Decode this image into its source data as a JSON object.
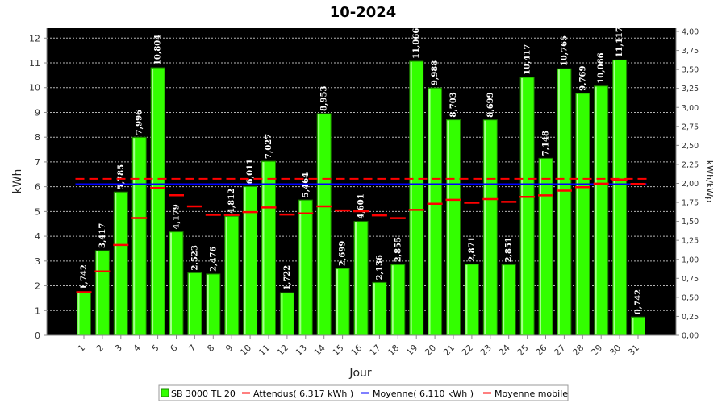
{
  "chart_data": {
    "type": "bar",
    "title": "10-2024",
    "xlabel": "Jour",
    "ylabel": "kWh",
    "y2label": "kWh/kWp",
    "ylim": [
      0,
      12.4
    ],
    "y2lim": [
      0,
      4.0
    ],
    "yticks": [
      "0",
      "1",
      "2",
      "3",
      "4",
      "5",
      "6",
      "7",
      "8",
      "9",
      "10",
      "11",
      "12"
    ],
    "y2ticks": [
      "0,00",
      "0,25",
      "0,50",
      "0,75",
      "1,00",
      "1,25",
      "1,50",
      "1,75",
      "2,00",
      "2,25",
      "2,50",
      "2,75",
      "3,00",
      "3,25",
      "3,50",
      "3,75",
      "4,00"
    ],
    "categories": [
      "1",
      "2",
      "3",
      "4",
      "5",
      "6",
      "7",
      "8",
      "9",
      "10",
      "11",
      "12",
      "13",
      "14",
      "15",
      "16",
      "17",
      "18",
      "19",
      "20",
      "21",
      "22",
      "23",
      "24",
      "25",
      "26",
      "27",
      "28",
      "29",
      "30",
      "31"
    ],
    "series": [
      {
        "name": "SB 3000 TL 20",
        "color": "#33ff00",
        "values": [
          1.742,
          3.417,
          5.785,
          7.996,
          10.804,
          4.179,
          2.523,
          2.476,
          4.812,
          6.011,
          7.027,
          1.722,
          5.464,
          8.953,
          2.699,
          4.601,
          2.136,
          2.855,
          11.066,
          9.988,
          8.703,
          2.871,
          8.699,
          2.851,
          10.417,
          7.148,
          10.765,
          9.769,
          10.066,
          11.117,
          0.742
        ],
        "labels": [
          "1,742",
          "3,417",
          "5,785",
          "7,996",
          "10,804",
          "4,179",
          "2,523",
          "2,476",
          "4,812",
          "6,011",
          "7,027",
          "1,722",
          "5,464",
          "8,953",
          "2,699",
          "4,601",
          "2,136",
          "2,855",
          "11,066",
          "9,988",
          "8,703",
          "2,871",
          "8,699",
          "2,851",
          "10,417",
          "7,148",
          "10,765",
          "9,769",
          "10,066",
          "11,117",
          "0,742"
        ]
      },
      {
        "name": "Attendus( 6,317 kWh )",
        "color": "#ff0000",
        "value": 6.317
      },
      {
        "name": "Moyenne( 6,110 kWh )",
        "color": "#0000ff",
        "value": 6.11
      },
      {
        "name": "Moyenne mobile",
        "color": "#ff0000",
        "values": [
          1.742,
          2.58,
          3.648,
          4.735,
          5.949,
          5.654,
          5.207,
          4.866,
          4.86,
          4.975,
          5.162,
          4.876,
          4.921,
          5.209,
          5.041,
          5.013,
          4.844,
          4.733,
          5.066,
          5.312,
          5.473,
          5.355,
          5.5,
          5.39,
          5.591,
          5.651,
          5.84,
          5.981,
          6.122,
          6.289,
          6.11
        ]
      }
    ],
    "grid": true,
    "legend": "bottom"
  }
}
